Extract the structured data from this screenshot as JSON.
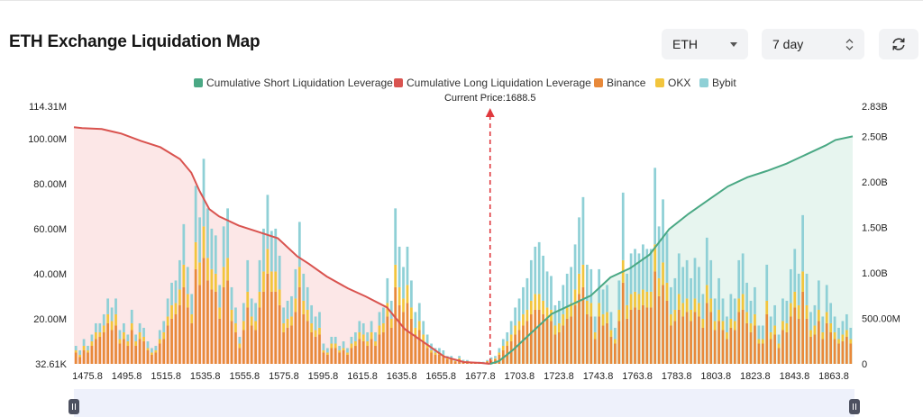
{
  "header": {
    "title": "ETH Exchange Liquidation Map",
    "asset_select": "ETH",
    "range_select": "7 day"
  },
  "legend": [
    {
      "label": "Cumulative Short Liquidation Leverage",
      "color": "#4aa884",
      "kind": "line"
    },
    {
      "label": "Cumulative Long Liquidation Leverage",
      "color": "#d9534f",
      "kind": "line"
    },
    {
      "label": "Binance",
      "color": "#e8893a",
      "kind": "bar"
    },
    {
      "label": "OKX",
      "color": "#f2c53d",
      "kind": "bar"
    },
    {
      "label": "Bybit",
      "color": "#8fd0d6",
      "kind": "bar"
    }
  ],
  "chart_data": {
    "type": "bar",
    "current_price_label": "Current Price:1688.5",
    "current_price": 1688.5,
    "x_range": [
      1475.8,
      1873.8
    ],
    "x_ticks": [
      "1475.8",
      "1495.8",
      "1515.8",
      "1535.8",
      "1555.8",
      "1575.8",
      "1595.8",
      "1615.8",
      "1635.8",
      "1655.8",
      "1677.8",
      "1703.8",
      "1723.8",
      "1743.8",
      "1763.8",
      "1783.8",
      "1803.8",
      "1823.8",
      "1843.8",
      "1863.8"
    ],
    "y_left_ticks": [
      {
        "value": 0.03261,
        "label": "32.61K"
      },
      {
        "value": 20,
        "label": "20.00M"
      },
      {
        "value": 40,
        "label": "40.00M"
      },
      {
        "value": 60,
        "label": "60.00M"
      },
      {
        "value": 80,
        "label": "80.00M"
      },
      {
        "value": 100,
        "label": "100.00M"
      },
      {
        "value": 114.31,
        "label": "114.31M"
      }
    ],
    "y_left_range": [
      0,
      114.31
    ],
    "y_right_ticks": [
      {
        "value": 0,
        "label": "0"
      },
      {
        "value": 0.5,
        "label": "500.00M"
      },
      {
        "value": 1.0,
        "label": "1.00B"
      },
      {
        "value": 1.5,
        "label": "1.50B"
      },
      {
        "value": 2.0,
        "label": "2.00B"
      },
      {
        "value": 2.5,
        "label": "2.50B"
      },
      {
        "value": 2.83,
        "label": "2.83B"
      }
    ],
    "y_right_range": [
      0,
      2.83
    ],
    "bar_step": 2,
    "bars": {
      "binance": [
        5,
        3,
        6,
        5,
        8,
        11,
        12,
        14,
        18,
        15,
        17,
        9,
        11,
        8,
        15,
        8,
        11,
        10,
        6,
        4,
        5,
        9,
        11,
        17,
        20,
        22,
        26,
        34,
        25,
        18,
        42,
        35,
        47,
        37,
        33,
        32,
        20,
        34,
        37,
        19,
        14,
        7,
        15,
        25,
        17,
        15,
        25,
        32,
        40,
        32,
        32,
        26,
        14,
        16,
        17,
        23,
        34,
        22,
        19,
        14,
        12,
        13,
        5,
        4,
        7,
        7,
        5,
        6,
        4,
        7,
        8,
        11,
        10,
        8,
        11,
        8,
        13,
        14,
        21,
        16,
        34,
        26,
        23,
        27,
        20,
        13,
        15,
        10,
        7,
        5,
        4,
        4,
        3,
        2,
        2,
        1,
        2,
        1,
        1,
        0.5,
        0.3,
        0.5,
        0.5,
        1,
        1.5,
        2,
        4,
        6,
        8,
        10,
        13,
        15,
        17,
        19,
        22,
        24,
        24,
        22,
        20,
        19,
        13,
        14,
        17,
        20,
        21,
        26,
        31,
        34,
        22,
        21,
        11,
        21,
        17,
        18,
        12,
        9,
        19,
        36,
        20,
        24,
        25,
        24,
        26,
        25,
        25,
        41,
        30,
        35,
        28,
        17,
        19,
        24,
        21,
        23,
        19,
        23,
        21,
        16,
        27,
        23,
        15,
        19,
        15,
        11,
        16,
        15,
        23,
        24,
        18,
        14,
        17,
        9,
        9,
        22,
        11,
        13,
        7,
        15,
        14,
        21,
        25,
        20,
        32,
        20,
        12,
        13,
        19,
        11,
        18,
        14,
        11,
        9,
        10,
        12,
        9
      ],
      "okx": [
        1,
        1,
        2,
        1,
        2,
        3,
        2,
        3,
        4,
        4,
        5,
        2,
        3,
        2,
        3,
        2,
        3,
        2,
        1,
        1,
        1,
        2,
        3,
        4,
        6,
        5,
        7,
        10,
        6,
        4,
        12,
        10,
        14,
        10,
        9,
        8,
        5,
        9,
        10,
        5,
        4,
        2,
        4,
        7,
        4,
        4,
        7,
        9,
        11,
        9,
        9,
        7,
        4,
        4,
        4,
        6,
        9,
        6,
        5,
        4,
        3,
        3,
        1,
        1,
        2,
        2,
        1,
        1,
        1,
        2,
        2,
        3,
        3,
        2,
        3,
        2,
        4,
        4,
        6,
        4,
        10,
        8,
        6,
        8,
        5,
        3,
        4,
        3,
        2,
        1,
        1,
        1,
        1,
        0.5,
        0.5,
        0.3,
        0.5,
        0.3,
        0.2,
        0.1,
        0.1,
        0.1,
        0.1,
        0.2,
        0.4,
        0.5,
        1,
        2,
        2,
        3,
        4,
        4,
        5,
        5,
        6,
        7,
        7,
        6,
        5,
        5,
        4,
        4,
        5,
        5,
        6,
        7,
        9,
        10,
        6,
        6,
        3,
        6,
        5,
        5,
        3,
        2,
        5,
        10,
        6,
        7,
        7,
        7,
        7,
        7,
        7,
        12,
        8,
        10,
        8,
        5,
        5,
        7,
        6,
        6,
        5,
        6,
        6,
        4,
        8,
        6,
        4,
        5,
        4,
        3,
        4,
        4,
        6,
        7,
        5,
        4,
        5,
        2,
        2,
        6,
        3,
        4,
        2,
        4,
        4,
        6,
        7,
        6,
        9,
        6,
        3,
        4,
        5,
        3,
        5,
        4,
        3,
        2,
        3,
        3,
        2
      ],
      "bybit": [
        2,
        2,
        3,
        2,
        3,
        4,
        4,
        5,
        7,
        6,
        7,
        4,
        4,
        3,
        6,
        3,
        4,
        4,
        3,
        2,
        2,
        4,
        5,
        8,
        10,
        10,
        13,
        18,
        12,
        9,
        25,
        20,
        30,
        22,
        18,
        17,
        10,
        18,
        22,
        10,
        7,
        3,
        8,
        14,
        8,
        8,
        14,
        19,
        24,
        18,
        19,
        15,
        7,
        8,
        9,
        13,
        20,
        12,
        10,
        8,
        6,
        7,
        3,
        2,
        3,
        3,
        2,
        3,
        2,
        3,
        4,
        5,
        5,
        4,
        5,
        4,
        6,
        7,
        11,
        8,
        25,
        18,
        14,
        17,
        12,
        7,
        8,
        6,
        4,
        3,
        2,
        2,
        2,
        1,
        1,
        0.5,
        1,
        0.5,
        0.5,
        0.3,
        0.2,
        0.3,
        0.3,
        0.5,
        1,
        1,
        2,
        3,
        4,
        6,
        8,
        10,
        12,
        14,
        18,
        21,
        23,
        20,
        16,
        15,
        9,
        10,
        13,
        15,
        16,
        20,
        25,
        30,
        16,
        15,
        7,
        15,
        11,
        12,
        8,
        5,
        13,
        30,
        14,
        18,
        19,
        18,
        20,
        19,
        19,
        34,
        23,
        28,
        22,
        12,
        14,
        18,
        16,
        17,
        14,
        18,
        16,
        11,
        21,
        17,
        10,
        14,
        10,
        7,
        11,
        10,
        17,
        18,
        13,
        10,
        12,
        6,
        6,
        16,
        7,
        9,
        4,
        10,
        10,
        15,
        19,
        14,
        25,
        14,
        8,
        9,
        13,
        7,
        12,
        9,
        7,
        5,
        6,
        7,
        5
      ]
    },
    "cumulative_long": [
      {
        "x": 1475.8,
        "y": 2.6
      },
      {
        "x": 1480,
        "y": 2.59
      },
      {
        "x": 1490,
        "y": 2.58
      },
      {
        "x": 1500,
        "y": 2.53
      },
      {
        "x": 1510,
        "y": 2.45
      },
      {
        "x": 1520,
        "y": 2.38
      },
      {
        "x": 1530,
        "y": 2.25
      },
      {
        "x": 1535.8,
        "y": 2.1
      },
      {
        "x": 1540,
        "y": 1.9
      },
      {
        "x": 1545,
        "y": 1.7
      },
      {
        "x": 1550,
        "y": 1.62
      },
      {
        "x": 1560,
        "y": 1.52
      },
      {
        "x": 1570,
        "y": 1.45
      },
      {
        "x": 1580,
        "y": 1.38
      },
      {
        "x": 1590,
        "y": 1.18
      },
      {
        "x": 1595.8,
        "y": 1.1
      },
      {
        "x": 1605,
        "y": 0.96
      },
      {
        "x": 1615.8,
        "y": 0.83
      },
      {
        "x": 1625,
        "y": 0.74
      },
      {
        "x": 1635.8,
        "y": 0.62
      },
      {
        "x": 1645,
        "y": 0.38
      },
      {
        "x": 1655.8,
        "y": 0.22
      },
      {
        "x": 1665,
        "y": 0.08
      },
      {
        "x": 1675,
        "y": 0.02
      },
      {
        "x": 1684,
        "y": 0.01
      },
      {
        "x": 1688.5,
        "y": 0.0
      }
    ],
    "cumulative_short": [
      {
        "x": 1688.5,
        "y": 0.0
      },
      {
        "x": 1693,
        "y": 0.03
      },
      {
        "x": 1700,
        "y": 0.15
      },
      {
        "x": 1710,
        "y": 0.35
      },
      {
        "x": 1720,
        "y": 0.55
      },
      {
        "x": 1730,
        "y": 0.65
      },
      {
        "x": 1740,
        "y": 0.75
      },
      {
        "x": 1750,
        "y": 0.95
      },
      {
        "x": 1760,
        "y": 1.05
      },
      {
        "x": 1770,
        "y": 1.2
      },
      {
        "x": 1780,
        "y": 1.48
      },
      {
        "x": 1790,
        "y": 1.65
      },
      {
        "x": 1800,
        "y": 1.8
      },
      {
        "x": 1810,
        "y": 1.95
      },
      {
        "x": 1820,
        "y": 2.05
      },
      {
        "x": 1830,
        "y": 2.12
      },
      {
        "x": 1840,
        "y": 2.2
      },
      {
        "x": 1850,
        "y": 2.3
      },
      {
        "x": 1860,
        "y": 2.4
      },
      {
        "x": 1865,
        "y": 2.46
      },
      {
        "x": 1873.8,
        "y": 2.5
      }
    ]
  }
}
